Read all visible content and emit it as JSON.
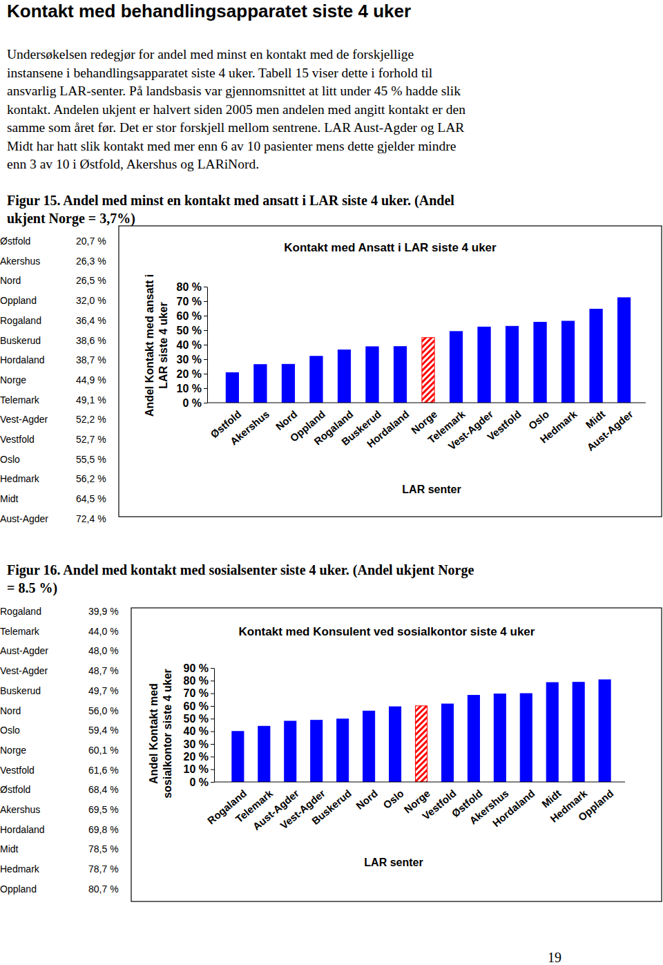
{
  "heading": "Kontakt med behandlingsapparatet siste 4 uker",
  "paragraph": [
    "Undersøkelsen redegjør for andel med minst en kontakt med de forskjellige",
    "instansene i behandlingsapparatet siste 4 uker. Tabell 15 viser dette i forhold til",
    "ansvarlig LAR-senter. På landsbasis var gjennomsnittet at litt under 45 % hadde slik",
    "kontakt. Andelen ukjent er halvert siden 2005 men andelen med angitt kontakt er den",
    "samme som året før. Det er stor forskjell mellom sentrene. LAR Aust-Agder og LAR",
    "Midt har hatt slik kontakt med mer enn 6 av 10 pasienter mens dette gjelder mindre",
    "enn 3 av 10 i Østfold, Akershus og LARiNord."
  ],
  "figures": [
    {
      "caption": [
        "Figur 15. Andel med minst en kontakt med ansatt i LAR siste 4 uker. (Andel",
        "ukjent Norge  = 3,7%)"
      ],
      "table": {
        "rows": [
          [
            "Østfold",
            "20,7 %"
          ],
          [
            "Akershus",
            "26,3 %"
          ],
          [
            "Nord",
            "26,5 %"
          ],
          [
            "Oppland",
            "32,0 %"
          ],
          [
            "Rogaland",
            "36,4 %"
          ],
          [
            "Buskerud",
            "38,6 %"
          ],
          [
            "Hordaland",
            "38,7 %"
          ],
          [
            "Norge",
            "44,9 %"
          ],
          [
            "Telemark",
            "49,1 %"
          ],
          [
            "Vest-Agder",
            "52,2 %"
          ],
          [
            "Vestfold",
            "52,7 %"
          ],
          [
            "Oslo",
            "55,5 %"
          ],
          [
            "Hedmark",
            "56,2 %"
          ],
          [
            "Midt",
            "64,5 %"
          ],
          [
            "Aust-Agder",
            "72,4 %"
          ]
        ]
      }
    },
    {
      "caption": [
        "Figur 16. Andel med kontakt med sosialsenter siste 4 uker.  (Andel ukjent Norge",
        "= 8.5 %)"
      ],
      "table": {
        "rows": [
          [
            "Rogaland",
            "39,9 %"
          ],
          [
            "Telemark",
            "44,0 %"
          ],
          [
            "Aust-Agder",
            "48,0 %"
          ],
          [
            "Vest-Agder",
            "48,7 %"
          ],
          [
            "Buskerud",
            "49,7 %"
          ],
          [
            "Nord",
            "56,0 %"
          ],
          [
            "Oslo",
            "59,4 %"
          ],
          [
            "Norge",
            "60,1 %"
          ],
          [
            "Vestfold",
            "61,6 %"
          ],
          [
            "Østfold",
            "68,4 %"
          ],
          [
            "Akershus",
            "69,5 %"
          ],
          [
            "Hordaland",
            "69,8 %"
          ],
          [
            "Midt",
            "78,5 %"
          ],
          [
            "Hedmark",
            "78,7 %"
          ],
          [
            "Oppland",
            "80,7 %"
          ]
        ]
      }
    }
  ],
  "chart_data": [
    {
      "type": "bar",
      "title": "Kontakt med Ansatt i LAR siste 4 uker",
      "xlabel": "LAR senter",
      "ylabel": [
        "Andel Kontakt med ansatt i",
        "LAR siste 4 uker"
      ],
      "categories": [
        "Østfold",
        "Akershus",
        "Nord",
        "Oppland",
        "Rogaland",
        "Buskerud",
        "Hordaland",
        "Norge",
        "Telemark",
        "Vest-Agder",
        "Vestfold",
        "Oslo",
        "Hedmark",
        "Midt",
        "Aust-Agder"
      ],
      "values": [
        20.7,
        26.3,
        26.5,
        32.0,
        36.4,
        38.6,
        38.7,
        44.9,
        49.1,
        52.2,
        52.7,
        55.5,
        56.2,
        64.5,
        72.4
      ],
      "color": "#0000ff",
      "colors": [
        "#0000ff",
        "#0000ff",
        "#0000ff",
        "#0000ff",
        "#0000ff",
        "#0000ff",
        "#0000ff",
        "#ff0000",
        "#0000ff",
        "#0000ff",
        "#0000ff",
        "#0000ff",
        "#0000ff",
        "#0000ff",
        "#0000ff"
      ],
      "ylim": [
        0,
        80
      ],
      "yticks": [
        {
          "value": 0,
          "label": "0 %"
        },
        {
          "value": 10,
          "label": "10 %"
        },
        {
          "value": 20,
          "label": "20 %"
        },
        {
          "value": 30,
          "label": "30 %"
        },
        {
          "value": 40,
          "label": "40 %"
        },
        {
          "value": 50,
          "label": "50 %"
        },
        {
          "value": 60,
          "label": "60 %"
        },
        {
          "value": 70,
          "label": "70 %"
        },
        {
          "value": 80,
          "label": "80 %"
        }
      ],
      "grid": false
    },
    {
      "type": "bar",
      "title": "Kontakt med Konsulent ved sosialkontor siste 4 uker",
      "xlabel": "LAR senter",
      "ylabel": [
        "Andel Kontakt med",
        "sosialkontor siste 4 uker"
      ],
      "categories": [
        "Rogaland",
        "Telemark",
        "Aust-Agder",
        "Vest-Agder",
        "Buskerud",
        "Nord",
        "Oslo",
        "Norge",
        "Vestfold",
        "Østfold",
        "Akershus",
        "Hordaland",
        "Midt",
        "Hedmark",
        "Oppland"
      ],
      "values": [
        39.9,
        44.0,
        48.0,
        48.7,
        49.7,
        56.0,
        59.4,
        60.1,
        61.6,
        68.4,
        69.5,
        69.8,
        78.5,
        78.7,
        80.7
      ],
      "color": "#0000ff",
      "colors": [
        "#0000ff",
        "#0000ff",
        "#0000ff",
        "#0000ff",
        "#0000ff",
        "#0000ff",
        "#0000ff",
        "#ff0000",
        "#0000ff",
        "#0000ff",
        "#0000ff",
        "#0000ff",
        "#0000ff",
        "#0000ff",
        "#0000ff"
      ],
      "ylim": [
        0,
        90
      ],
      "yticks": [
        {
          "value": 0,
          "label": "0 %"
        },
        {
          "value": 10,
          "label": "10 %"
        },
        {
          "value": 20,
          "label": "20 %"
        },
        {
          "value": 30,
          "label": "30 %"
        },
        {
          "value": 40,
          "label": "40 %"
        },
        {
          "value": 50,
          "label": "50 %"
        },
        {
          "value": 60,
          "label": "60 %"
        },
        {
          "value": 70,
          "label": "70 %"
        },
        {
          "value": 80,
          "label": "80 %"
        },
        {
          "value": 90,
          "label": "90 %"
        }
      ],
      "grid": false
    }
  ],
  "page_number": "19"
}
